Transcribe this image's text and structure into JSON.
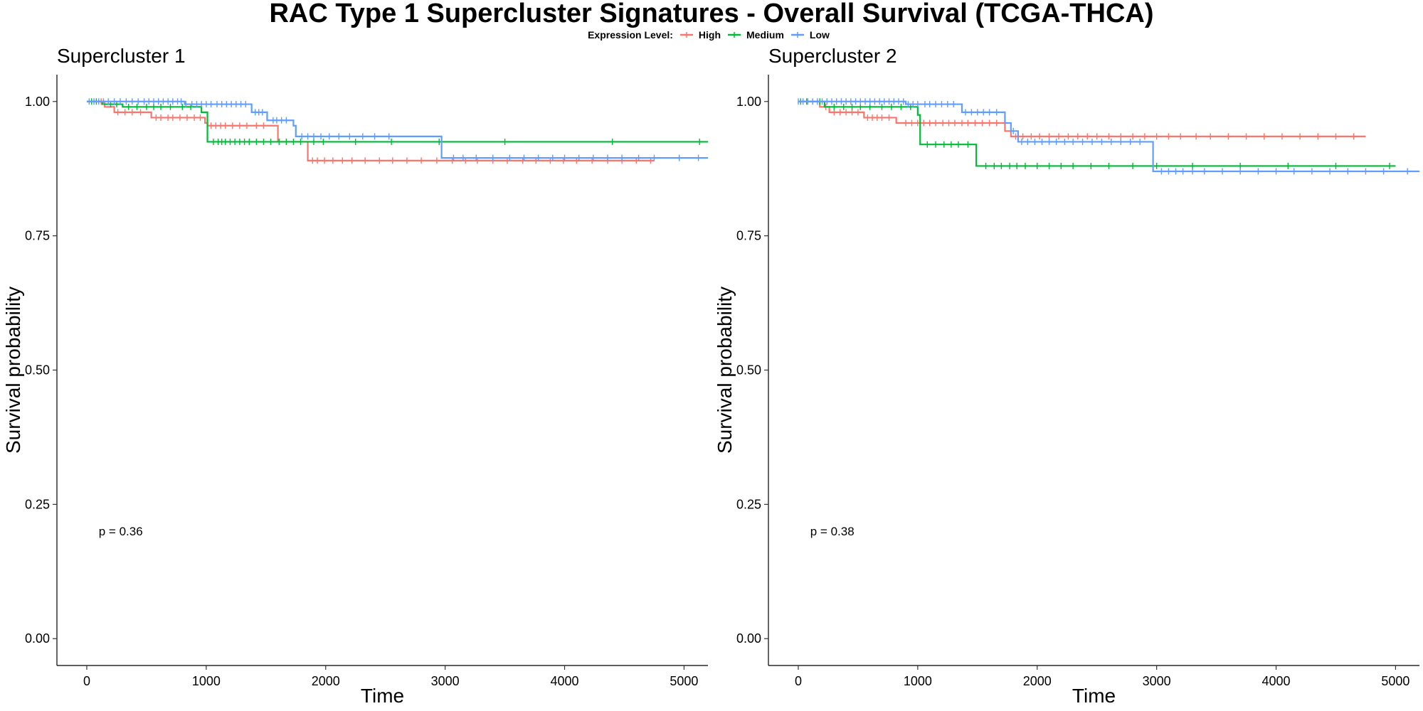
{
  "title": "RAC Type 1 Supercluster Signatures - Overall Survival (TCGA-THCA)",
  "legend": {
    "title": "Expression Level:",
    "items": [
      {
        "label": "High",
        "color": "#F8766D"
      },
      {
        "label": "Medium",
        "color": "#00BA38"
      },
      {
        "label": "Low",
        "color": "#619CFF"
      }
    ]
  },
  "chart_data": [
    {
      "type": "line",
      "subtitle": "Supercluster 1",
      "xlabel": "Time",
      "ylabel": "Survival probability",
      "xlim": [
        -250,
        5200
      ],
      "ylim": [
        -0.05,
        1.05
      ],
      "xticks": [
        0,
        1000,
        2000,
        3000,
        4000,
        5000
      ],
      "yticks": [
        0.0,
        0.25,
        0.5,
        0.75,
        1.0
      ],
      "ytick_labels": [
        "0.00",
        "0.25",
        "0.50",
        "0.75",
        "1.00"
      ],
      "annotation": "p = 0.36",
      "annotation_pos": [
        100,
        0.2
      ],
      "grid": false,
      "series": [
        {
          "name": "High",
          "color": "#F8766D",
          "steps": [
            [
              0,
              1.0
            ],
            [
              150,
              0.99
            ],
            [
              230,
              0.98
            ],
            [
              540,
              0.97
            ],
            [
              990,
              0.96
            ],
            [
              1010,
              0.955
            ],
            [
              1600,
              0.925
            ],
            [
              1850,
              0.89
            ],
            [
              4750,
              0.89
            ]
          ],
          "censors": [
            120,
            260,
            320,
            380,
            450,
            580,
            620,
            680,
            720,
            780,
            840,
            900,
            950,
            1040,
            1080,
            1120,
            1160,
            1220,
            1280,
            1340,
            1420,
            1480,
            1890,
            1930,
            1990,
            2060,
            2140,
            2220,
            2330,
            2450,
            2560,
            2680,
            2800,
            2930,
            3060,
            3170,
            3270,
            3400,
            3520,
            3650,
            3760,
            3880,
            3990,
            4100,
            4230,
            4360,
            4480,
            4600,
            4720
          ]
        },
        {
          "name": "Medium",
          "color": "#00BA38",
          "steps": [
            [
              0,
              1.0
            ],
            [
              130,
              0.995
            ],
            [
              300,
              0.99
            ],
            [
              960,
              0.98
            ],
            [
              1010,
              0.925
            ],
            [
              5200,
              0.925
            ]
          ],
          "censors": [
            40,
            80,
            200,
            250,
            350,
            420,
            500,
            560,
            620,
            700,
            800,
            870,
            1060,
            1100,
            1130,
            1160,
            1200,
            1240,
            1280,
            1320,
            1360,
            1420,
            1480,
            1540,
            1610,
            1670,
            1730,
            1790,
            1900,
            1980,
            2250,
            2550,
            2950,
            3500,
            4400,
            5130
          ]
        },
        {
          "name": "Low",
          "color": "#619CFF",
          "steps": [
            [
              0,
              1.0
            ],
            [
              820,
              0.995
            ],
            [
              1380,
              0.98
            ],
            [
              1510,
              0.965
            ],
            [
              1730,
              0.955
            ],
            [
              1750,
              0.935
            ],
            [
              2970,
              0.895
            ],
            [
              5200,
              0.895
            ]
          ],
          "censors": [
            20,
            60,
            100,
            140,
            180,
            230,
            280,
            330,
            380,
            430,
            480,
            520,
            560,
            600,
            640,
            680,
            720,
            760,
            790,
            830,
            880,
            920,
            960,
            1000,
            1040,
            1090,
            1130,
            1170,
            1210,
            1250,
            1290,
            1330,
            1410,
            1440,
            1470,
            1560,
            1590,
            1630,
            1670,
            1800,
            1850,
            1900,
            1960,
            2030,
            2110,
            2200,
            2310,
            2410,
            2530,
            3070,
            3150,
            3260,
            3400,
            3540,
            3660,
            3780,
            3900,
            4000,
            4120,
            4240,
            4360,
            4480,
            4620,
            4750,
            4960,
            5120
          ]
        }
      ]
    },
    {
      "type": "line",
      "subtitle": "Supercluster 2",
      "xlabel": "Time",
      "ylabel": "Survival probability",
      "xlim": [
        -250,
        5200
      ],
      "ylim": [
        -0.05,
        1.05
      ],
      "xticks": [
        0,
        1000,
        2000,
        3000,
        4000,
        5000
      ],
      "yticks": [
        0.0,
        0.25,
        0.5,
        0.75,
        1.0
      ],
      "ytick_labels": [
        "0.00",
        "0.25",
        "0.50",
        "0.75",
        "1.00"
      ],
      "annotation": "p = 0.38",
      "annotation_pos": [
        100,
        0.2
      ],
      "grid": false,
      "series": [
        {
          "name": "High",
          "color": "#F8766D",
          "steps": [
            [
              0,
              1.0
            ],
            [
              180,
              0.99
            ],
            [
              260,
              0.98
            ],
            [
              550,
              0.97
            ],
            [
              820,
              0.96
            ],
            [
              1730,
              0.945
            ],
            [
              1780,
              0.935
            ],
            [
              4750,
              0.935
            ]
          ],
          "censors": [
            230,
            300,
            350,
            400,
            450,
            500,
            580,
            620,
            660,
            700,
            760,
            900,
            950,
            1000,
            1050,
            1100,
            1150,
            1210,
            1260,
            1310,
            1370,
            1420,
            1480,
            1540,
            1600,
            1660,
            1820,
            1880,
            1950,
            2020,
            2100,
            2180,
            2260,
            2340,
            2420,
            2500,
            2600,
            2700,
            2800,
            2900,
            3000,
            3100,
            3200,
            3330,
            3450,
            3600,
            3750,
            3900,
            4050,
            4200,
            4350,
            4500,
            4650
          ]
        },
        {
          "name": "Medium",
          "color": "#00BA38",
          "steps": [
            [
              0,
              1.0
            ],
            [
              220,
              0.99
            ],
            [
              1000,
              0.975
            ],
            [
              1020,
              0.92
            ],
            [
              1490,
              0.88
            ],
            [
              5000,
              0.88
            ]
          ],
          "censors": [
            20,
            70,
            180,
            300,
            380,
            450,
            520,
            600,
            700,
            780,
            860,
            940,
            1080,
            1150,
            1220,
            1280,
            1340,
            1420,
            1570,
            1640,
            1700,
            1770,
            1830,
            1900,
            2000,
            2100,
            2200,
            2300,
            2450,
            2600,
            2800,
            3000,
            3300,
            3700,
            4100,
            4500,
            4950
          ]
        },
        {
          "name": "Low",
          "color": "#619CFF",
          "steps": [
            [
              0,
              1.0
            ],
            [
              900,
              0.995
            ],
            [
              1370,
              0.98
            ],
            [
              1730,
              0.96
            ],
            [
              1780,
              0.945
            ],
            [
              1840,
              0.925
            ],
            [
              2970,
              0.87
            ],
            [
              5200,
              0.87
            ]
          ],
          "censors": [
            0,
            40,
            80,
            120,
            160,
            200,
            240,
            280,
            320,
            360,
            400,
            440,
            480,
            520,
            560,
            600,
            640,
            680,
            720,
            760,
            800,
            840,
            880,
            920,
            960,
            1000,
            1060,
            1100,
            1150,
            1200,
            1250,
            1300,
            1400,
            1450,
            1500,
            1550,
            1600,
            1660,
            1800,
            1870,
            1920,
            1980,
            2040,
            2100,
            2160,
            2230,
            2300,
            2380,
            2460,
            2540,
            2620,
            2700,
            2780,
            2860,
            3040,
            3100,
            3160,
            3220,
            3300,
            3400,
            3550,
            3700,
            3850,
            4000,
            4150,
            4300,
            4450,
            4600,
            4750,
            4900,
            5100
          ]
        }
      ]
    }
  ]
}
